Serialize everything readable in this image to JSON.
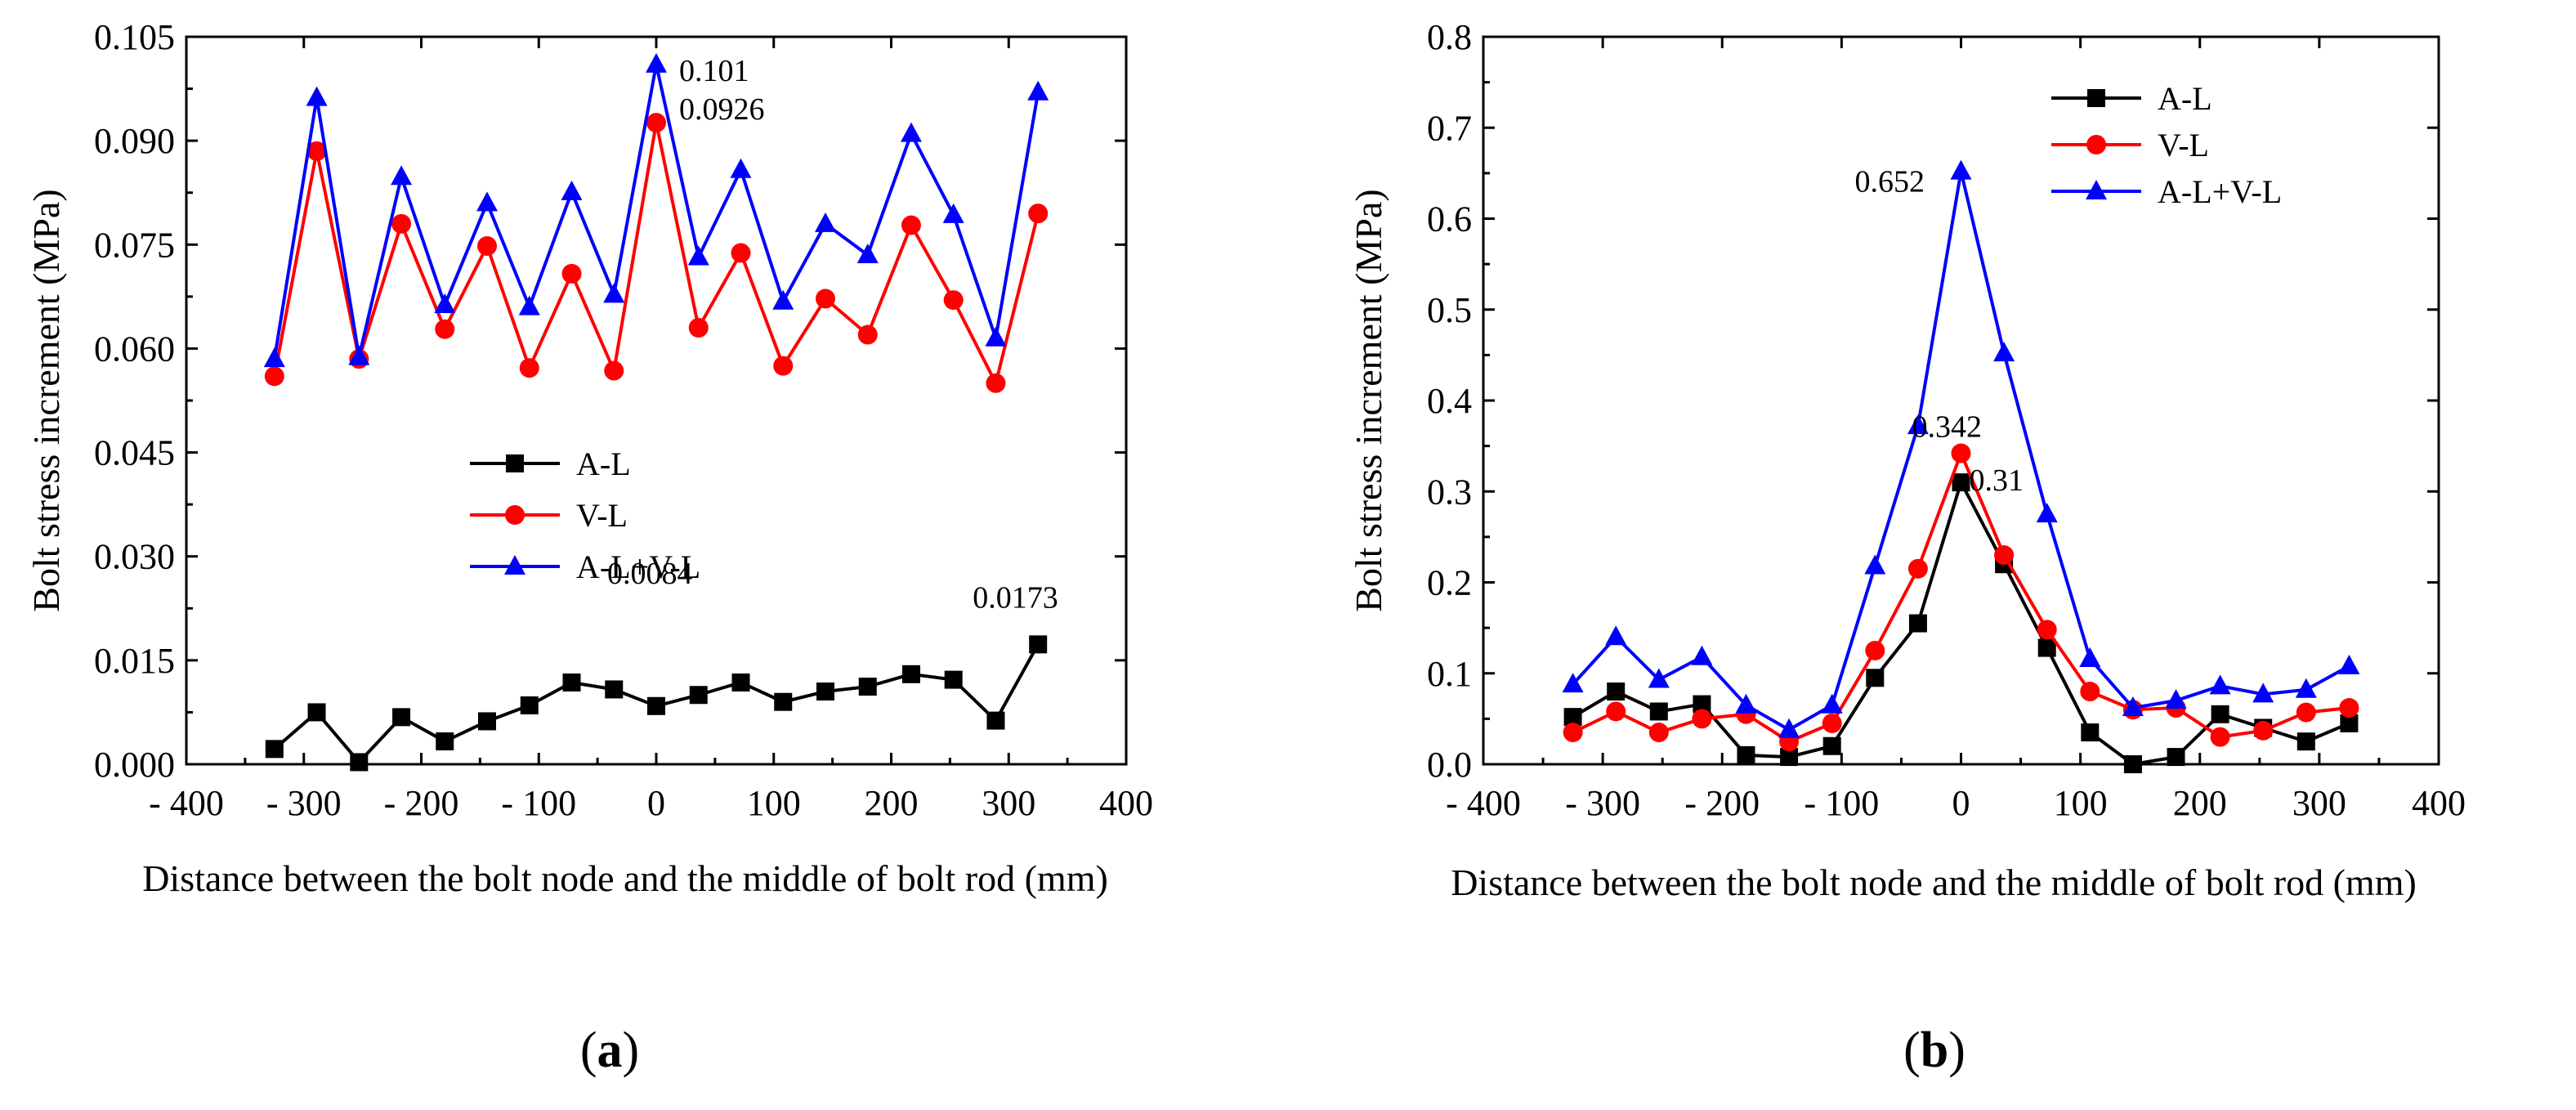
{
  "chart_data": [
    {
      "type": "line",
      "panel_label_open": "(",
      "panel_letter": "a",
      "panel_label_close": ")",
      "xlabel": "Distance between the bolt node and the middle of bolt rod (mm)",
      "ylabel": "Bolt stress increment (MPa)",
      "xlim": [
        -400,
        400
      ],
      "ylim": [
        0,
        0.105
      ],
      "xticks": [
        -400,
        -300,
        -200,
        -100,
        0,
        100,
        200,
        300,
        400
      ],
      "xtick_labels": [
        "- 400",
        "- 300",
        "- 200",
        "- 100",
        "0",
        "100",
        "200",
        "300",
        "400"
      ],
      "yticks": [
        0,
        0.015,
        0.03,
        0.045,
        0.06,
        0.075,
        0.09,
        0.105
      ],
      "ytick_labels": [
        "0.000",
        "0.015",
        "0.030",
        "0.045",
        "0.060",
        "0.075",
        "0.090",
        "0.105"
      ],
      "legend_position": "center-left",
      "x": [
        -325,
        -289,
        -253,
        -217,
        -180,
        -144,
        -108,
        -72,
        -36,
        0,
        36,
        72,
        108,
        144,
        180,
        217,
        253,
        289,
        325
      ],
      "series": [
        {
          "name": "A-L",
          "color": "#000000",
          "marker": "square",
          "values": [
            0.0022,
            0.0075,
            0.0003,
            0.0068,
            0.0033,
            0.0062,
            0.0085,
            0.0118,
            0.0108,
            0.0084,
            0.01,
            0.0118,
            0.009,
            0.0105,
            0.0112,
            0.013,
            0.0122,
            0.0063,
            0.0173
          ]
        },
        {
          "name": "V-L",
          "color": "#ff0000",
          "marker": "circle",
          "values": [
            0.056,
            0.0885,
            0.0585,
            0.078,
            0.0628,
            0.0748,
            0.0572,
            0.0708,
            0.0568,
            0.0926,
            0.063,
            0.0738,
            0.0575,
            0.0672,
            0.062,
            0.0778,
            0.067,
            0.055,
            0.0795
          ]
        },
        {
          "name": "A-L+V-L",
          "color": "#0000ff",
          "marker": "triangle",
          "values": [
            0.0585,
            0.0962,
            0.0588,
            0.0848,
            0.0663,
            0.081,
            0.066,
            0.0826,
            0.0678,
            0.101,
            0.0732,
            0.0858,
            0.0668,
            0.078,
            0.0735,
            0.091,
            0.0793,
            0.0615,
            0.097
          ]
        }
      ],
      "annotations": [
        {
          "text": "0.101",
          "x": 0,
          "y": 0.101
        },
        {
          "text": "0.0926",
          "x": 0,
          "y": 0.0926
        },
        {
          "text": "0.0084",
          "x": 0,
          "y": 0.0084
        },
        {
          "text": "0.0173",
          "x": 325,
          "y": 0.0173
        }
      ]
    },
    {
      "type": "line",
      "panel_label_open": "(",
      "panel_letter": "b",
      "panel_label_close": ")",
      "xlabel": "Distance between the bolt node and the middle of bolt rod (mm)",
      "ylabel": "Bolt stress increment (MPa)",
      "xlim": [
        -400,
        400
      ],
      "ylim": [
        0,
        0.8
      ],
      "xticks": [
        -400,
        -300,
        -200,
        -100,
        0,
        100,
        200,
        300,
        400
      ],
      "xtick_labels": [
        "- 400",
        "- 300",
        "- 200",
        "- 100",
        "0",
        "100",
        "200",
        "300",
        "400"
      ],
      "yticks": [
        0,
        0.1,
        0.2,
        0.3,
        0.4,
        0.5,
        0.6,
        0.7,
        0.8
      ],
      "ytick_labels": [
        "0.0",
        "0.1",
        "0.2",
        "0.3",
        "0.4",
        "0.5",
        "0.6",
        "0.7",
        "0.8"
      ],
      "legend_position": "top-center",
      "x": [
        -325,
        -289,
        -253,
        -217,
        -180,
        -144,
        -108,
        -72,
        -36,
        0,
        36,
        72,
        108,
        144,
        180,
        217,
        253,
        289,
        325
      ],
      "series": [
        {
          "name": "A-L",
          "color": "#000000",
          "marker": "square",
          "values": [
            0.052,
            0.08,
            0.058,
            0.066,
            0.01,
            0.008,
            0.02,
            0.095,
            0.155,
            0.31,
            0.22,
            0.128,
            0.035,
            0.0,
            0.008,
            0.055,
            0.04,
            0.025,
            0.045
          ]
        },
        {
          "name": "V-L",
          "color": "#ff0000",
          "marker": "circle",
          "values": [
            0.035,
            0.058,
            0.035,
            0.05,
            0.055,
            0.025,
            0.045,
            0.125,
            0.215,
            0.342,
            0.23,
            0.148,
            0.08,
            0.06,
            0.062,
            0.03,
            0.037,
            0.057,
            0.062
          ]
        },
        {
          "name": "A-L+V-L",
          "color": "#0000ff",
          "marker": "triangle",
          "values": [
            0.088,
            0.14,
            0.093,
            0.118,
            0.065,
            0.038,
            0.065,
            0.218,
            0.372,
            0.652,
            0.452,
            0.275,
            0.116,
            0.062,
            0.07,
            0.086,
            0.077,
            0.082,
            0.108
          ]
        }
      ],
      "annotations": [
        {
          "text": "0.652",
          "x": 0,
          "y": 0.652
        },
        {
          "text": "0.342",
          "x": 0,
          "y": 0.342
        },
        {
          "text": "0.31",
          "x": 0,
          "y": 0.31
        }
      ]
    }
  ]
}
